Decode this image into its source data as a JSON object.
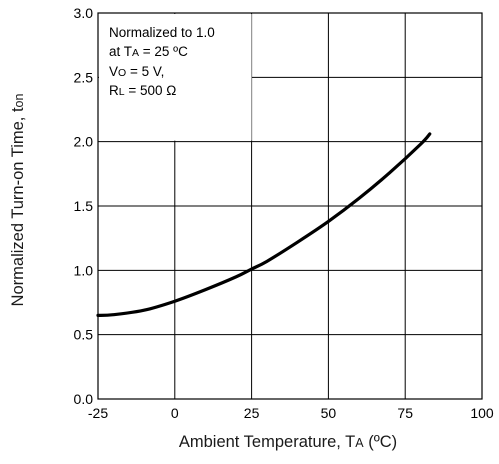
{
  "chart_data": {
    "type": "line",
    "xlabel": {
      "main": "Ambient Temperature, T",
      "sub": "A",
      "unit": " (ºC)"
    },
    "ylabel": {
      "main": "Normalized Turn-on Time, t",
      "sub": "on"
    },
    "xlim": [
      -25,
      100
    ],
    "ylim": [
      0.0,
      3.0
    ],
    "x_ticks": [
      -25,
      0,
      25,
      50,
      75,
      100
    ],
    "x_tick_labels": [
      "-25",
      "0",
      "25",
      "50",
      "75",
      "100"
    ],
    "y_ticks": [
      0.0,
      0.5,
      1.0,
      1.5,
      2.0,
      2.5,
      3.0
    ],
    "y_tick_labels": [
      "0.0",
      "0.5",
      "1.0",
      "1.5",
      "2.0",
      "2.5",
      "3.0"
    ],
    "grid": true,
    "annotation": {
      "line1": "Normalized to 1.0",
      "line2_prefix": "at T",
      "line2_sub": "A",
      "line2_suffix": " = 25 ºC",
      "line3_prefix": "V",
      "line3_sub": "O",
      "line3_suffix": " = 5 V,",
      "line4_prefix": "R",
      "line4_sub": "L",
      "line4_suffix": " = 500 Ω"
    },
    "series": [
      {
        "x": [
          -25,
          -20,
          -10,
          0,
          10,
          20,
          25,
          30,
          40,
          50,
          60,
          70,
          80,
          83
        ],
        "y": [
          0.65,
          0.655,
          0.69,
          0.76,
          0.85,
          0.95,
          1.01,
          1.07,
          1.22,
          1.38,
          1.56,
          1.76,
          1.98,
          2.06
        ]
      }
    ]
  }
}
